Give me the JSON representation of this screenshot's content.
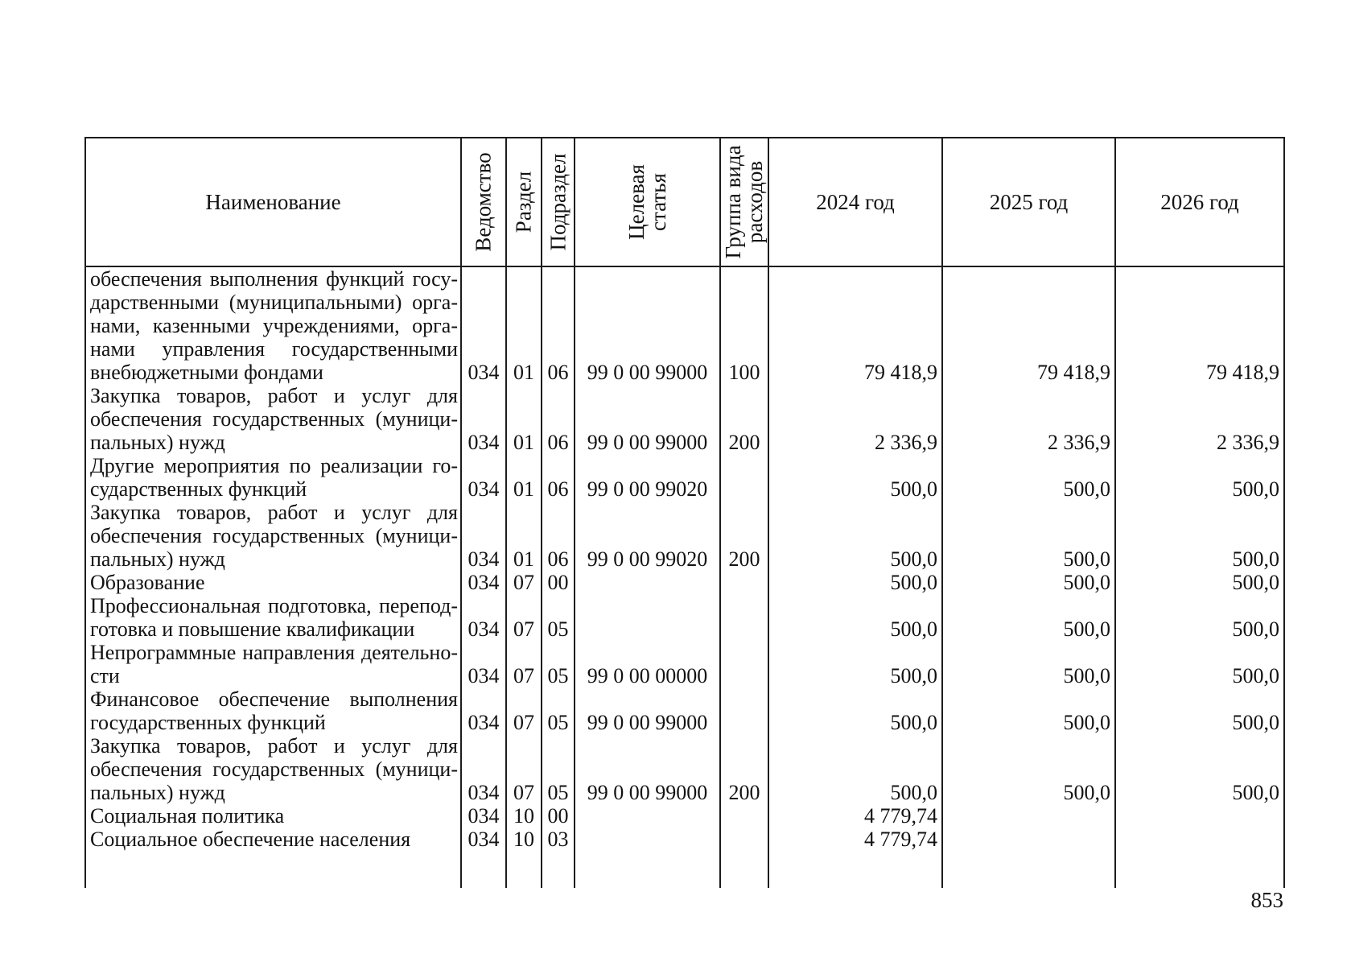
{
  "page": {
    "number": "853"
  },
  "table": {
    "headers": {
      "name": "Наименование",
      "vedomstvo": "Ведомство",
      "razdel": "Раздел",
      "podrazdel": "Подраздел",
      "tselevaya": "Целевая\nстатья",
      "gruppa": "Группа вида\nрасходов",
      "y2024": "2024 год",
      "y2025": "2025 год",
      "y2026": "2026 год"
    },
    "rows": [
      {
        "name_lines": [
          "обеспечения выполнения функций госу-",
          "дарственными (муниципальными) орга-",
          "нами, казенными учреждениями, орга-",
          "нами управления государственными",
          "внебюджетными фондами"
        ],
        "vedomstvo": "034",
        "razdel": "01",
        "podrazdel": "06",
        "tselevaya": "99 0 00 99000",
        "gruppa": "100",
        "y2024": "79 418,9",
        "y2025": "79 418,9",
        "y2026": "79 418,9"
      },
      {
        "name_lines": [
          "Закупка товаров, работ и услуг для",
          "обеспечения государственных (муници-",
          "пальных) нужд"
        ],
        "vedomstvo": "034",
        "razdel": "01",
        "podrazdel": "06",
        "tselevaya": "99 0 00 99000",
        "gruppa": "200",
        "y2024": "2 336,9",
        "y2025": "2 336,9",
        "y2026": "2 336,9"
      },
      {
        "name_lines": [
          "Другие мероприятия по реализации го-",
          "сударственных функций"
        ],
        "vedomstvo": "034",
        "razdel": "01",
        "podrazdel": "06",
        "tselevaya": "99 0 00 99020",
        "gruppa": "",
        "y2024": "500,0",
        "y2025": "500,0",
        "y2026": "500,0"
      },
      {
        "name_lines": [
          "Закупка товаров, работ и услуг для",
          "обеспечения государственных (муници-",
          "пальных) нужд"
        ],
        "vedomstvo": "034",
        "razdel": "01",
        "podrazdel": "06",
        "tselevaya": "99 0 00 99020",
        "gruppa": "200",
        "y2024": "500,0",
        "y2025": "500,0",
        "y2026": "500,0"
      },
      {
        "name_lines": [
          "Образование"
        ],
        "vedomstvo": "034",
        "razdel": "07",
        "podrazdel": "00",
        "tselevaya": "",
        "gruppa": "",
        "y2024": "500,0",
        "y2025": "500,0",
        "y2026": "500,0"
      },
      {
        "name_lines": [
          "Профессиональная подготовка, перепод-",
          "готовка и повышение квалификации"
        ],
        "vedomstvo": "034",
        "razdel": "07",
        "podrazdel": "05",
        "tselevaya": "",
        "gruppa": "",
        "y2024": "500,0",
        "y2025": "500,0",
        "y2026": "500,0"
      },
      {
        "name_lines": [
          "Непрограммные направления деятельно-",
          "сти"
        ],
        "vedomstvo": "034",
        "razdel": "07",
        "podrazdel": "05",
        "tselevaya": "99 0 00 00000",
        "gruppa": "",
        "y2024": "500,0",
        "y2025": "500,0",
        "y2026": "500,0"
      },
      {
        "name_lines": [
          "Финансовое обеспечение выполнения",
          "государственных функций"
        ],
        "vedomstvo": "034",
        "razdel": "07",
        "podrazdel": "05",
        "tselevaya": "99 0 00 99000",
        "gruppa": "",
        "y2024": "500,0",
        "y2025": "500,0",
        "y2026": "500,0"
      },
      {
        "name_lines": [
          "Закупка товаров, работ и услуг для",
          "обеспечения государственных (муници-",
          "пальных) нужд"
        ],
        "vedomstvo": "034",
        "razdel": "07",
        "podrazdel": "05",
        "tselevaya": "99 0 00 99000",
        "gruppa": "200",
        "y2024": "500,0",
        "y2025": "500,0",
        "y2026": "500,0"
      },
      {
        "name_lines": [
          "Социальная политика"
        ],
        "vedomstvo": "034",
        "razdel": "10",
        "podrazdel": "00",
        "tselevaya": "",
        "gruppa": "",
        "y2024": "4 779,74",
        "y2025": "",
        "y2026": ""
      },
      {
        "name_lines": [
          "Социальное обеспечение населения"
        ],
        "vedomstvo": "034",
        "razdel": "10",
        "podrazdel": "03",
        "tselevaya": "",
        "gruppa": "",
        "y2024": "4 779,74",
        "y2025": "",
        "y2026": ""
      }
    ]
  }
}
